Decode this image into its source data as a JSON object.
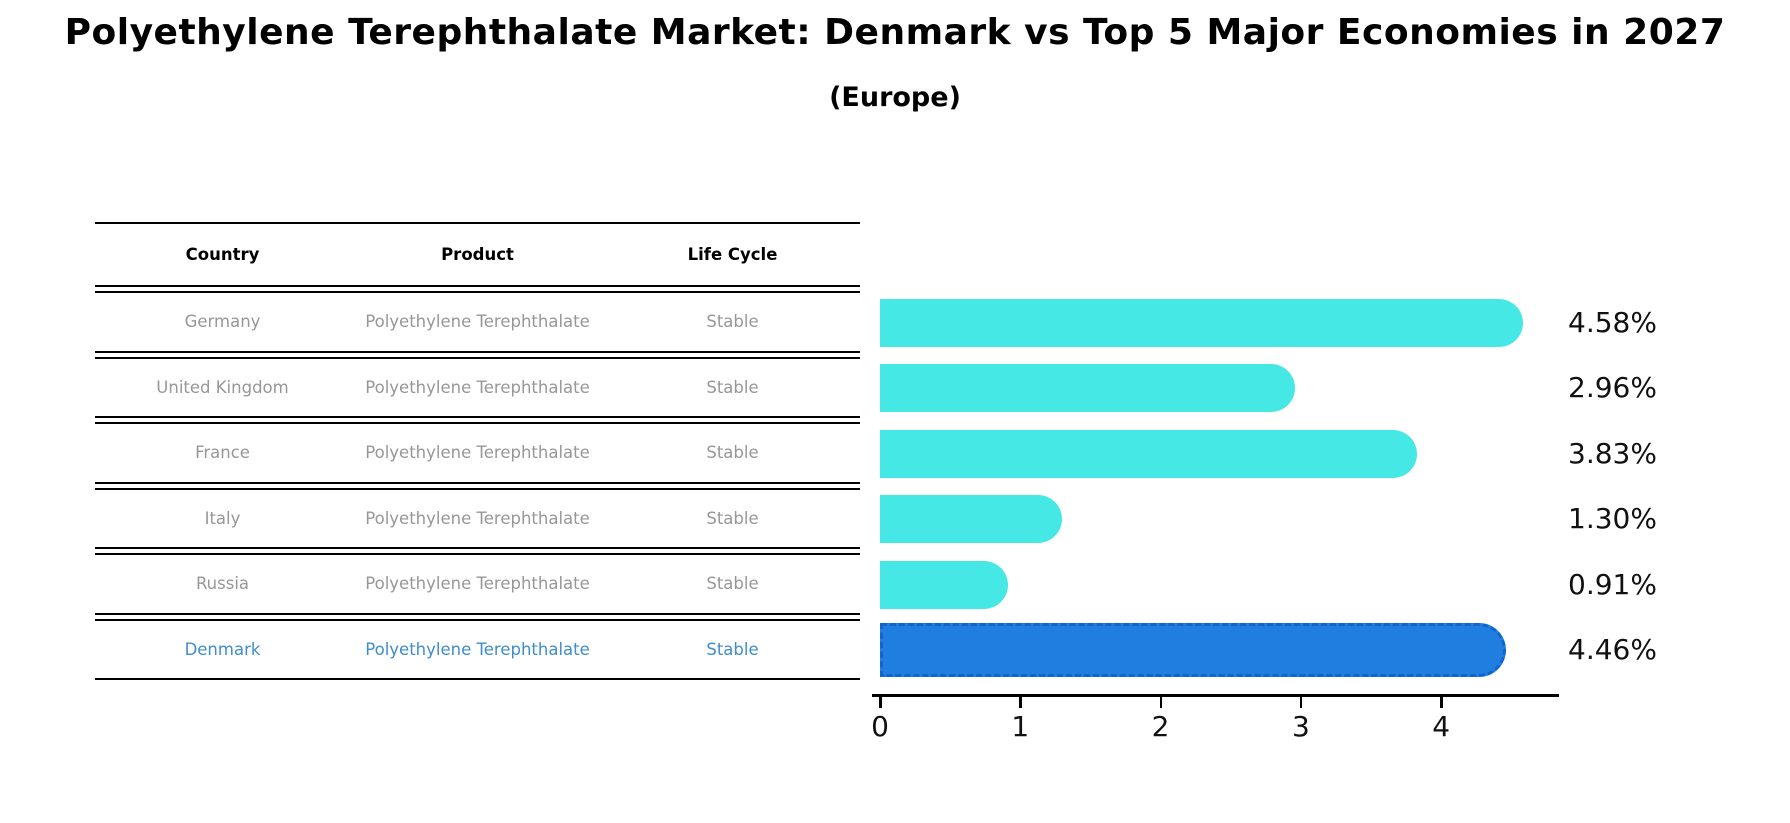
{
  "title": "Polyethylene Terephthalate Market: Denmark vs Top 5 Major Economies in 2027",
  "subtitle": "(Europe)",
  "table": {
    "headers": [
      "Country",
      "Product",
      "Life Cycle"
    ],
    "rows": [
      {
        "country": "Germany",
        "product": "Polyethylene Terephthalate",
        "life_cycle": "Stable",
        "highlight": false
      },
      {
        "country": "United Kingdom",
        "product": "Polyethylene Terephthalate",
        "life_cycle": "Stable",
        "highlight": false
      },
      {
        "country": "France",
        "product": "Polyethylene Terephthalate",
        "life_cycle": "Stable",
        "highlight": false
      },
      {
        "country": "Italy",
        "product": "Polyethylene Terephthalate",
        "life_cycle": "Stable",
        "highlight": false
      },
      {
        "country": "Russia",
        "product": "Polyethylene Terephthalate",
        "life_cycle": "Stable",
        "highlight": false
      },
      {
        "country": "Denmark",
        "product": "Polyethylene Terephthalate",
        "life_cycle": "Stable",
        "highlight": true
      }
    ]
  },
  "chart_data": {
    "type": "bar",
    "orientation": "horizontal",
    "title": "Polyethylene Terephthalate Market: Denmark vs Top 5 Major Economies in 2027",
    "subtitle": "(Europe)",
    "categories": [
      "Germany",
      "United Kingdom",
      "France",
      "Italy",
      "Russia",
      "Denmark"
    ],
    "values": [
      4.58,
      2.96,
      3.83,
      1.3,
      0.91,
      4.46
    ],
    "labels": [
      "4.58%",
      "2.96%",
      "3.83%",
      "1.30%",
      "0.91%",
      "4.46%"
    ],
    "x_ticks": [
      "0",
      "1",
      "2",
      "3",
      "4"
    ],
    "xlim": [
      0,
      4.8
    ],
    "grid": false,
    "legend": false,
    "bar_color": "#45e8e4",
    "highlight_bar_color": "#1f7ee0",
    "highlight_border_color": "#1264cf",
    "highlight_text_color": "#3f8ccc",
    "highlight_index": 5
  }
}
